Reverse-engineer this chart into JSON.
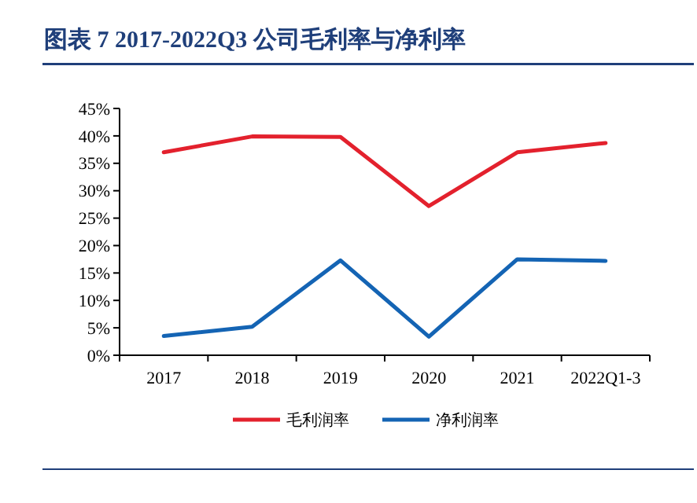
{
  "chart_data": {
    "type": "line",
    "title": "图表 7   2017-2022Q3 公司毛利率与净利率",
    "categories": [
      "2017",
      "2018",
      "2019",
      "2020",
      "2021",
      "2022Q1-3"
    ],
    "series": [
      {
        "name": "毛利润率",
        "color": "#e3212d",
        "values": [
          37,
          39.9,
          39.8,
          27.2,
          37,
          38.7
        ]
      },
      {
        "name": "净利润率",
        "color": "#1464b4",
        "values": [
          3.5,
          5.2,
          17.3,
          3.4,
          17.5,
          17.2
        ]
      }
    ],
    "ylim": [
      0,
      45
    ],
    "yticks": [
      {
        "value": 0,
        "label": "0%"
      },
      {
        "value": 5,
        "label": "5%"
      },
      {
        "value": 10,
        "label": "10%"
      },
      {
        "value": 15,
        "label": "15%"
      },
      {
        "value": 20,
        "label": "20%"
      },
      {
        "value": 25,
        "label": "25%"
      },
      {
        "value": 30,
        "label": "30%"
      },
      {
        "value": 35,
        "label": "35%"
      },
      {
        "value": 40,
        "label": "40%"
      },
      {
        "value": 45,
        "label": "45%"
      }
    ],
    "grid": false,
    "legend": "bottom",
    "marker": "none",
    "line_style": "solid"
  }
}
